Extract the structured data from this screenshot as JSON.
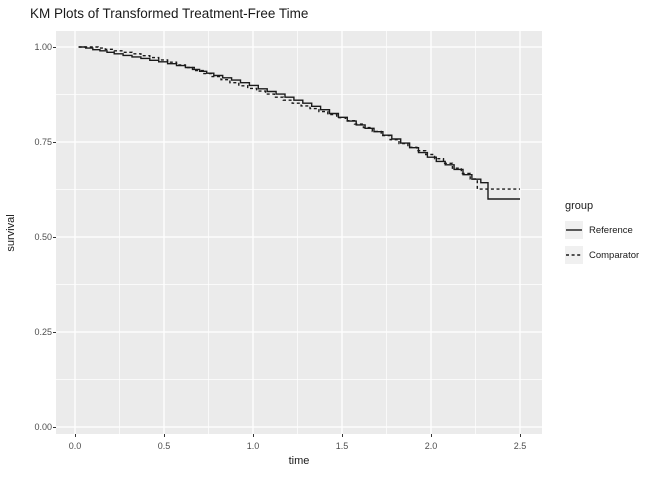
{
  "style": {
    "panel_bg": "#EBEBEB",
    "grid_color": "#FFFFFF",
    "line_color": "#1A1A1A",
    "tick_label_color": "#4D4D4D",
    "tick_mark_color": "#333333",
    "legend_key_bg": "#F0F0F0",
    "background": "#FFFFFF"
  },
  "chart_data": {
    "type": "line",
    "subtype": "kaplan-meier-step",
    "title": "KM Plots of Transformed Treatment-Free Time",
    "xlabel": "time",
    "ylabel": "survival",
    "xlim": [
      0,
      2.5
    ],
    "ylim": [
      0,
      1
    ],
    "grid": true,
    "x_ticks": [
      {
        "value": 0.0,
        "label": "0.0"
      },
      {
        "value": 0.5,
        "label": "0.5"
      },
      {
        "value": 1.0,
        "label": "1.0"
      },
      {
        "value": 1.5,
        "label": "1.5"
      },
      {
        "value": 2.0,
        "label": "2.0"
      },
      {
        "value": 2.5,
        "label": "2.5"
      }
    ],
    "y_ticks": [
      {
        "value": 0.0,
        "label": "0.00"
      },
      {
        "value": 0.25,
        "label": "0.25"
      },
      {
        "value": 0.5,
        "label": "0.50"
      },
      {
        "value": 0.75,
        "label": "0.75"
      },
      {
        "value": 1.0,
        "label": "1.00"
      }
    ],
    "x_minor_ticks": [
      0.25,
      0.75,
      1.25,
      1.75,
      2.25
    ],
    "y_minor_ticks": [
      0.125,
      0.375,
      0.625,
      0.875
    ],
    "legend": {
      "title": "group",
      "position": "right"
    },
    "series": [
      {
        "name": "Reference",
        "linetype": "solid",
        "points": [
          [
            0.02,
            1.0
          ],
          [
            0.06,
            0.997
          ],
          [
            0.1,
            0.993
          ],
          [
            0.14,
            0.99
          ],
          [
            0.18,
            0.986
          ],
          [
            0.22,
            0.982
          ],
          [
            0.27,
            0.978
          ],
          [
            0.32,
            0.974
          ],
          [
            0.37,
            0.97
          ],
          [
            0.42,
            0.965
          ],
          [
            0.47,
            0.961
          ],
          [
            0.52,
            0.956
          ],
          [
            0.57,
            0.951
          ],
          [
            0.62,
            0.946
          ],
          [
            0.66,
            0.941
          ],
          [
            0.7,
            0.936
          ],
          [
            0.74,
            0.931
          ],
          [
            0.78,
            0.925
          ],
          [
            0.83,
            0.919
          ],
          [
            0.88,
            0.913
          ],
          [
            0.93,
            0.906
          ],
          [
            0.98,
            0.899
          ],
          [
            1.03,
            0.89
          ],
          [
            1.08,
            0.883
          ],
          [
            1.13,
            0.876
          ],
          [
            1.18,
            0.868
          ],
          [
            1.23,
            0.86
          ],
          [
            1.28,
            0.852
          ],
          [
            1.33,
            0.844
          ],
          [
            1.38,
            0.835
          ],
          [
            1.43,
            0.825
          ],
          [
            1.48,
            0.815
          ],
          [
            1.53,
            0.805
          ],
          [
            1.58,
            0.795
          ],
          [
            1.63,
            0.786
          ],
          [
            1.68,
            0.777
          ],
          [
            1.73,
            0.768
          ],
          [
            1.78,
            0.758
          ],
          [
            1.83,
            0.747
          ],
          [
            1.88,
            0.735
          ],
          [
            1.93,
            0.722
          ],
          [
            1.98,
            0.71
          ],
          [
            2.03,
            0.699
          ],
          [
            2.08,
            0.69
          ],
          [
            2.13,
            0.678
          ],
          [
            2.18,
            0.664
          ],
          [
            2.23,
            0.652
          ],
          [
            2.28,
            0.643
          ],
          [
            2.32,
            0.6
          ],
          [
            2.5,
            0.6
          ]
        ]
      },
      {
        "name": "Comparator",
        "linetype": "dashed",
        "points": [
          [
            0.02,
            1.0
          ],
          [
            0.09,
            1.0
          ],
          [
            0.13,
            0.997
          ],
          [
            0.17,
            0.994
          ],
          [
            0.22,
            0.99
          ],
          [
            0.27,
            0.986
          ],
          [
            0.32,
            0.982
          ],
          [
            0.37,
            0.977
          ],
          [
            0.42,
            0.972
          ],
          [
            0.47,
            0.966
          ],
          [
            0.52,
            0.96
          ],
          [
            0.57,
            0.953
          ],
          [
            0.62,
            0.946
          ],
          [
            0.67,
            0.938
          ],
          [
            0.72,
            0.93
          ],
          [
            0.77,
            0.922
          ],
          [
            0.82,
            0.914
          ],
          [
            0.87,
            0.906
          ],
          [
            0.92,
            0.898
          ],
          [
            0.97,
            0.891
          ],
          [
            1.02,
            0.884
          ],
          [
            1.07,
            0.876
          ],
          [
            1.12,
            0.868
          ],
          [
            1.17,
            0.86
          ],
          [
            1.22,
            0.852
          ],
          [
            1.27,
            0.845
          ],
          [
            1.32,
            0.838
          ],
          [
            1.37,
            0.83
          ],
          [
            1.42,
            0.822
          ],
          [
            1.47,
            0.814
          ],
          [
            1.52,
            0.806
          ],
          [
            1.57,
            0.797
          ],
          [
            1.62,
            0.788
          ],
          [
            1.67,
            0.778
          ],
          [
            1.72,
            0.767
          ],
          [
            1.77,
            0.756
          ],
          [
            1.82,
            0.746
          ],
          [
            1.87,
            0.736
          ],
          [
            1.92,
            0.727
          ],
          [
            1.97,
            0.717
          ],
          [
            2.02,
            0.706
          ],
          [
            2.07,
            0.694
          ],
          [
            2.12,
            0.681
          ],
          [
            2.17,
            0.667
          ],
          [
            2.22,
            0.653
          ],
          [
            2.26,
            0.626
          ],
          [
            2.5,
            0.626
          ]
        ]
      }
    ]
  }
}
